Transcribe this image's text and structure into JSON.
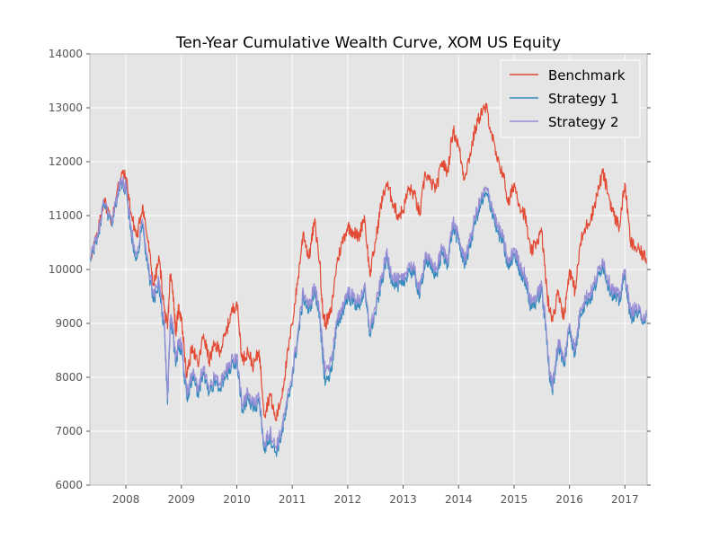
{
  "chart_data": {
    "type": "line",
    "title": "Ten-Year Cumulative Wealth Curve, XOM US Equity",
    "xlabel": "",
    "ylabel": "",
    "xlim": [
      2007.35,
      2017.4
    ],
    "ylim": [
      6000,
      14000
    ],
    "x_ticks": [
      "2008",
      "2009",
      "2010",
      "2011",
      "2012",
      "2013",
      "2014",
      "2015",
      "2016",
      "2017"
    ],
    "y_ticks": [
      "6000",
      "7000",
      "8000",
      "9000",
      "10000",
      "11000",
      "12000",
      "13000",
      "14000"
    ],
    "grid": true,
    "legend_position": "top-right",
    "colors": {
      "background": "#e5e5e5",
      "grid": "#ffffff",
      "benchmark": "#e24a33",
      "strategy1": "#348abd",
      "strategy2": "#988ed5"
    },
    "series": [
      {
        "name": "Benchmark",
        "x": [
          2007.35,
          2007.5,
          2007.6,
          2007.75,
          2007.85,
          2007.92,
          2008.0,
          2008.1,
          2008.2,
          2008.3,
          2008.4,
          2008.5,
          2008.6,
          2008.7,
          2008.75,
          2008.8,
          2008.85,
          2008.9,
          2008.95,
          2009.0,
          2009.1,
          2009.2,
          2009.3,
          2009.4,
          2009.5,
          2009.6,
          2009.7,
          2009.8,
          2009.9,
          2010.0,
          2010.1,
          2010.2,
          2010.3,
          2010.4,
          2010.5,
          2010.6,
          2010.7,
          2010.8,
          2010.9,
          2011.0,
          2011.1,
          2011.2,
          2011.3,
          2011.4,
          2011.5,
          2011.55,
          2011.6,
          2011.7,
          2011.8,
          2011.9,
          2012.0,
          2012.1,
          2012.2,
          2012.3,
          2012.4,
          2012.5,
          2012.6,
          2012.7,
          2012.8,
          2012.9,
          2013.0,
          2013.1,
          2013.2,
          2013.3,
          2013.4,
          2013.5,
          2013.6,
          2013.7,
          2013.8,
          2013.9,
          2014.0,
          2014.1,
          2014.2,
          2014.3,
          2014.4,
          2014.5,
          2014.6,
          2014.7,
          2014.8,
          2014.9,
          2015.0,
          2015.1,
          2015.2,
          2015.3,
          2015.4,
          2015.5,
          2015.6,
          2015.65,
          2015.7,
          2015.8,
          2015.9,
          2016.0,
          2016.1,
          2016.2,
          2016.3,
          2016.4,
          2016.5,
          2016.6,
          2016.7,
          2016.8,
          2016.9,
          2017.0,
          2017.1,
          2017.2,
          2017.3,
          2017.4
        ],
        "values": [
          10200,
          10700,
          11300,
          10900,
          11500,
          11800,
          11700,
          11000,
          10600,
          11200,
          10500,
          9700,
          10200,
          9200,
          8900,
          9900,
          9600,
          8800,
          9300,
          9100,
          8000,
          8600,
          8200,
          8800,
          8300,
          8600,
          8500,
          8800,
          9200,
          9400,
          8300,
          8500,
          8200,
          8500,
          7300,
          7700,
          7200,
          7600,
          8300,
          9000,
          9800,
          10700,
          10200,
          10900,
          10100,
          9200,
          9000,
          9200,
          10100,
          10500,
          10800,
          10700,
          10600,
          11000,
          9900,
          10500,
          11200,
          11600,
          11300,
          11000,
          11100,
          11500,
          11400,
          11000,
          11800,
          11600,
          11500,
          12000,
          11800,
          12600,
          12300,
          11700,
          12100,
          12600,
          12900,
          13000,
          12500,
          12000,
          11800,
          11200,
          11600,
          11200,
          11000,
          10300,
          10500,
          10700,
          9500,
          9200,
          9100,
          9600,
          9100,
          10000,
          9600,
          10500,
          10800,
          11000,
          11400,
          11800,
          11400,
          11000,
          10800,
          11600,
          10500,
          10400,
          10300,
          10200
        ]
      },
      {
        "name": "Strategy 1",
        "x": [
          2007.35,
          2007.5,
          2007.6,
          2007.75,
          2007.85,
          2007.92,
          2008.0,
          2008.1,
          2008.2,
          2008.3,
          2008.4,
          2008.5,
          2008.6,
          2008.7,
          2008.75,
          2008.8,
          2008.85,
          2008.9,
          2008.95,
          2009.0,
          2009.1,
          2009.2,
          2009.3,
          2009.4,
          2009.5,
          2009.6,
          2009.7,
          2009.8,
          2009.9,
          2010.0,
          2010.1,
          2010.2,
          2010.3,
          2010.4,
          2010.5,
          2010.6,
          2010.7,
          2010.8,
          2010.9,
          2011.0,
          2011.1,
          2011.2,
          2011.3,
          2011.4,
          2011.5,
          2011.55,
          2011.6,
          2011.7,
          2011.8,
          2011.9,
          2012.0,
          2012.1,
          2012.2,
          2012.3,
          2012.4,
          2012.5,
          2012.6,
          2012.7,
          2012.8,
          2012.9,
          2013.0,
          2013.1,
          2013.2,
          2013.3,
          2013.4,
          2013.5,
          2013.6,
          2013.7,
          2013.8,
          2013.9,
          2014.0,
          2014.1,
          2014.2,
          2014.3,
          2014.4,
          2014.5,
          2014.6,
          2014.7,
          2014.8,
          2014.9,
          2015.0,
          2015.1,
          2015.2,
          2015.3,
          2015.4,
          2015.5,
          2015.6,
          2015.65,
          2015.7,
          2015.8,
          2015.9,
          2016.0,
          2016.1,
          2016.2,
          2016.3,
          2016.4,
          2016.5,
          2016.6,
          2016.7,
          2016.8,
          2016.9,
          2017.0,
          2017.1,
          2017.2,
          2017.3,
          2017.4
        ],
        "values": [
          10200,
          10600,
          11200,
          10800,
          11400,
          11600,
          11500,
          10600,
          10200,
          10800,
          10000,
          9400,
          9700,
          8800,
          7500,
          9000,
          8800,
          8200,
          8600,
          8500,
          7600,
          8000,
          7700,
          8100,
          7700,
          7900,
          7800,
          8000,
          8200,
          8300,
          7400,
          7600,
          7400,
          7500,
          6700,
          6900,
          6600,
          6900,
          7400,
          8000,
          8700,
          9500,
          9200,
          9600,
          9100,
          8300,
          7900,
          8100,
          8900,
          9200,
          9500,
          9400,
          9300,
          9600,
          8800,
          9200,
          9700,
          10200,
          9800,
          9700,
          9700,
          10000,
          9900,
          9500,
          10200,
          10000,
          9900,
          10300,
          10100,
          10800,
          10500,
          10100,
          10400,
          10900,
          11200,
          11400,
          11100,
          10700,
          10500,
          10000,
          10300,
          10000,
          9800,
          9300,
          9400,
          9600,
          8600,
          7900,
          7800,
          8600,
          8200,
          8900,
          8400,
          9200,
          9400,
          9500,
          9800,
          10100,
          9700,
          9500,
          9400,
          9900,
          9100,
          9200,
          9100,
          9100
        ]
      },
      {
        "name": "Strategy 2",
        "x": [
          2007.35,
          2007.5,
          2007.6,
          2007.75,
          2007.85,
          2007.92,
          2008.0,
          2008.1,
          2008.2,
          2008.3,
          2008.4,
          2008.5,
          2008.6,
          2008.7,
          2008.75,
          2008.8,
          2008.85,
          2008.9,
          2008.95,
          2009.0,
          2009.1,
          2009.2,
          2009.3,
          2009.4,
          2009.5,
          2009.6,
          2009.7,
          2009.8,
          2009.9,
          2010.0,
          2010.1,
          2010.2,
          2010.3,
          2010.4,
          2010.5,
          2010.6,
          2010.7,
          2010.8,
          2010.9,
          2011.0,
          2011.1,
          2011.2,
          2011.3,
          2011.4,
          2011.5,
          2011.55,
          2011.6,
          2011.7,
          2011.8,
          2011.9,
          2012.0,
          2012.1,
          2012.2,
          2012.3,
          2012.4,
          2012.5,
          2012.6,
          2012.7,
          2012.8,
          2012.9,
          2013.0,
          2013.1,
          2013.2,
          2013.3,
          2013.4,
          2013.5,
          2013.6,
          2013.7,
          2013.8,
          2013.9,
          2014.0,
          2014.1,
          2014.2,
          2014.3,
          2014.4,
          2014.5,
          2014.6,
          2014.7,
          2014.8,
          2014.9,
          2015.0,
          2015.1,
          2015.2,
          2015.3,
          2015.4,
          2015.5,
          2015.6,
          2015.65,
          2015.7,
          2015.8,
          2015.9,
          2016.0,
          2016.1,
          2016.2,
          2016.3,
          2016.4,
          2016.5,
          2016.6,
          2016.7,
          2016.8,
          2016.9,
          2017.0,
          2017.1,
          2017.2,
          2017.3,
          2017.4
        ],
        "values": [
          10250,
          10650,
          11250,
          10850,
          11450,
          11650,
          11550,
          10700,
          10300,
          10900,
          10100,
          9500,
          9800,
          8900,
          7600,
          9100,
          8900,
          8300,
          8700,
          8600,
          7700,
          8100,
          7800,
          8200,
          7800,
          8000,
          7900,
          8100,
          8300,
          8400,
          7500,
          7700,
          7500,
          7600,
          6800,
          7000,
          6700,
          7000,
          7500,
          8100,
          8800,
          9600,
          9300,
          9700,
          9200,
          8500,
          8100,
          8300,
          9000,
          9300,
          9600,
          9500,
          9400,
          9700,
          8900,
          9300,
          9800,
          10300,
          9900,
          9800,
          9800,
          10100,
          10000,
          9600,
          10300,
          10100,
          10000,
          10400,
          10200,
          10900,
          10600,
          10200,
          10500,
          11000,
          11300,
          11500,
          11200,
          10800,
          10600,
          10100,
          10400,
          10100,
          9900,
          9400,
          9500,
          9700,
          8700,
          8000,
          7900,
          8700,
          8300,
          9000,
          8500,
          9300,
          9500,
          9600,
          9900,
          10200,
          9800,
          9600,
          9500,
          10000,
          9200,
          9300,
          9150,
          9150
        ]
      }
    ]
  }
}
